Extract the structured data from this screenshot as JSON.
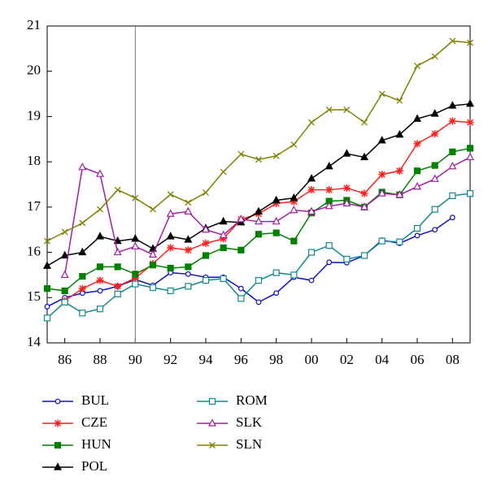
{
  "chart_data": {
    "type": "line",
    "x": [
      85,
      86,
      87,
      88,
      89,
      90,
      91,
      92,
      93,
      94,
      95,
      96,
      97,
      98,
      99,
      100,
      101,
      102,
      103,
      104,
      105,
      106,
      107,
      108,
      109
    ],
    "xlim": [
      85,
      109
    ],
    "xticks": [
      86,
      88,
      90,
      92,
      94,
      96,
      98,
      {
        "value": 100,
        "label": "00"
      },
      {
        "value": 102,
        "label": "02"
      },
      {
        "value": 104,
        "label": "04"
      },
      {
        "value": 106,
        "label": "06"
      },
      {
        "value": 108,
        "label": "08"
      }
    ],
    "ylim": [
      14,
      21
    ],
    "yticks": [
      14,
      15,
      16,
      17,
      18,
      19,
      20,
      21
    ],
    "vline": 90,
    "series": [
      {
        "name": "BUL",
        "color": "#1010c8",
        "marker": "circle",
        "values": [
          14.8,
          15.0,
          15.1,
          15.15,
          15.25,
          15.4,
          15.27,
          15.55,
          15.52,
          15.45,
          15.45,
          15.2,
          14.9,
          15.1,
          15.45,
          15.38,
          15.78,
          15.77,
          15.93,
          16.27,
          16.2,
          16.37,
          16.5,
          16.77,
          null
        ]
      },
      {
        "name": "CZE",
        "color": "#ff2020",
        "marker": "star",
        "values": [
          null,
          14.93,
          15.2,
          15.38,
          15.25,
          15.43,
          15.75,
          16.1,
          16.05,
          16.2,
          16.3,
          16.73,
          16.85,
          17.08,
          17.12,
          17.38,
          17.38,
          17.42,
          17.3,
          17.72,
          17.8,
          18.4,
          18.62,
          18.9,
          18.87
        ]
      },
      {
        "name": "HUN",
        "color": "#008000",
        "marker": "square",
        "values": [
          15.2,
          15.15,
          15.47,
          15.68,
          15.68,
          15.52,
          15.72,
          15.65,
          15.68,
          15.93,
          16.1,
          16.05,
          16.4,
          16.43,
          16.25,
          16.87,
          17.13,
          17.15,
          17.0,
          17.33,
          17.27,
          17.8,
          17.92,
          18.22,
          18.3
        ]
      },
      {
        "name": "POL",
        "color": "#000000",
        "marker": "triangle",
        "values": [
          15.7,
          15.93,
          16.0,
          16.35,
          16.25,
          16.3,
          16.08,
          16.35,
          16.28,
          16.53,
          16.68,
          16.66,
          16.9,
          17.15,
          17.2,
          17.63,
          17.9,
          18.18,
          18.1,
          18.47,
          18.6,
          18.95,
          19.06,
          19.24,
          19.28
        ]
      },
      {
        "name": "ROM",
        "color": "#108a8a",
        "marker": "open-square",
        "values": [
          14.55,
          14.9,
          14.66,
          14.75,
          15.08,
          15.3,
          15.22,
          15.15,
          15.25,
          15.38,
          15.42,
          14.98,
          15.38,
          15.55,
          15.5,
          16.0,
          16.15,
          15.85,
          15.93,
          16.25,
          16.23,
          16.53,
          16.95,
          17.25,
          17.3
        ]
      },
      {
        "name": "SLK",
        "color": "#a020a0",
        "marker": "open-triangle",
        "values": [
          null,
          15.5,
          17.88,
          17.73,
          16.0,
          16.13,
          15.95,
          16.85,
          16.9,
          16.5,
          16.38,
          16.73,
          16.68,
          16.68,
          16.93,
          16.9,
          17.02,
          17.08,
          17.0,
          17.3,
          17.27,
          17.45,
          17.62,
          17.9,
          18.1
        ]
      },
      {
        "name": "SLN",
        "color": "#808000",
        "marker": "x",
        "values": [
          16.25,
          16.45,
          16.65,
          16.95,
          17.38,
          17.2,
          16.95,
          17.28,
          17.1,
          17.32,
          17.78,
          18.17,
          18.05,
          18.13,
          18.38,
          18.87,
          19.15,
          19.15,
          18.87,
          19.5,
          19.35,
          20.12,
          20.33,
          20.67,
          20.63
        ]
      }
    ]
  }
}
